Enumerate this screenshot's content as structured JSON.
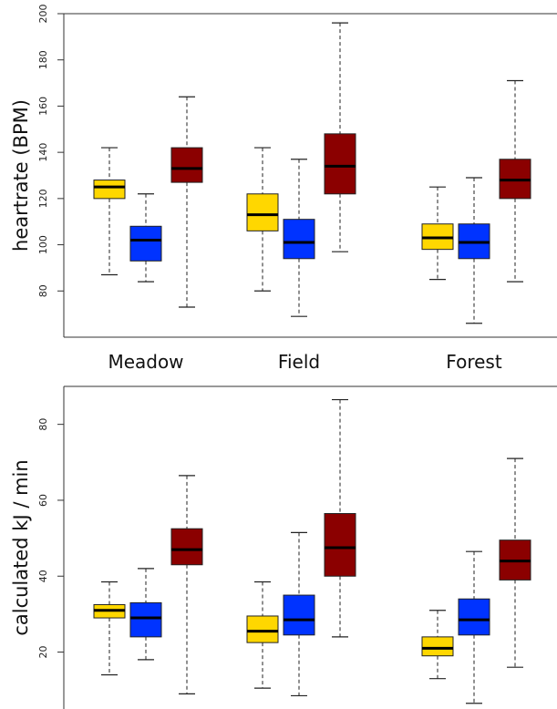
{
  "chart_data": [
    {
      "type": "box",
      "ylabel": "heartrate (BPM)",
      "ylim": [
        60,
        200
      ],
      "yticks": [
        80,
        100,
        120,
        140,
        160,
        180,
        200
      ],
      "groups": [
        "Meadow",
        "Field",
        "Forest"
      ],
      "series_colors": [
        "#FFD700",
        "#0033FF",
        "#8B0000"
      ],
      "boxes": [
        [
          {
            "min": 87,
            "q1": 120,
            "median": 125,
            "q3": 128,
            "max": 142
          },
          {
            "min": 84,
            "q1": 93,
            "median": 102,
            "q3": 108,
            "max": 122
          },
          {
            "min": 73,
            "q1": 127,
            "median": 133,
            "q3": 142,
            "max": 164
          }
        ],
        [
          {
            "min": 80,
            "q1": 106,
            "median": 113,
            "q3": 122,
            "max": 142
          },
          {
            "min": 69,
            "q1": 94,
            "median": 101,
            "q3": 111,
            "max": 137
          },
          {
            "min": 97,
            "q1": 122,
            "median": 134,
            "q3": 148,
            "max": 196
          }
        ],
        [
          {
            "min": 85,
            "q1": 98,
            "median": 103,
            "q3": 109,
            "max": 125
          },
          {
            "min": 66,
            "q1": 94,
            "median": 101,
            "q3": 109,
            "max": 129
          },
          {
            "min": 84,
            "q1": 120,
            "median": 128,
            "q3": 137,
            "max": 171
          }
        ]
      ]
    },
    {
      "type": "box",
      "ylabel": "calculated kJ / min",
      "ylim": [
        5,
        90
      ],
      "yticks": [
        20,
        40,
        60,
        80
      ],
      "groups": [
        "Meadow",
        "Field",
        "Forest"
      ],
      "series_colors": [
        "#FFD700",
        "#0033FF",
        "#8B0000"
      ],
      "boxes": [
        [
          {
            "min": 14,
            "q1": 29,
            "median": 31,
            "q3": 32.5,
            "max": 38.5
          },
          {
            "min": 18,
            "q1": 24,
            "median": 29,
            "q3": 33,
            "max": 42
          },
          {
            "min": 9,
            "q1": 43,
            "median": 47,
            "q3": 52.5,
            "max": 66.5
          }
        ],
        [
          {
            "min": 10.5,
            "q1": 22.5,
            "median": 25.5,
            "q3": 29.5,
            "max": 38.5
          },
          {
            "min": 8.5,
            "q1": 24.5,
            "median": 28.5,
            "q3": 35,
            "max": 51.5
          },
          {
            "min": 24,
            "q1": 40,
            "median": 47.5,
            "q3": 56.5,
            "max": 86.5
          }
        ],
        [
          {
            "min": 13,
            "q1": 19,
            "median": 21,
            "q3": 24,
            "max": 31
          },
          {
            "min": 6.5,
            "q1": 24.5,
            "median": 28.5,
            "q3": 34,
            "max": 46.5
          },
          {
            "min": 16,
            "q1": 39,
            "median": 44,
            "q3": 49.5,
            "max": 71
          }
        ]
      ]
    }
  ]
}
